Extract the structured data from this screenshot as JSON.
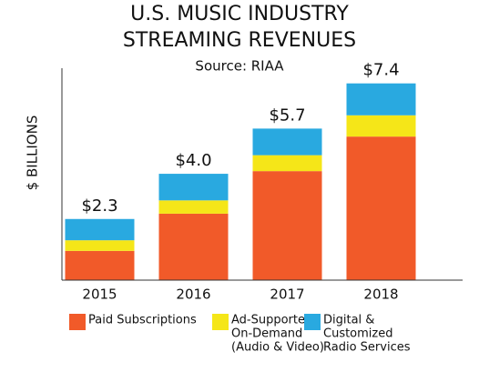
{
  "chart_data": {
    "type": "stacked-bar",
    "title": [
      "U.S. MUSIC INDUSTRY",
      "STREAMING REVENUES"
    ],
    "subtitle": "Source: RIAA",
    "y_label": "$ BILLIONS",
    "categories": [
      "2015",
      "2016",
      "2017",
      "2018"
    ],
    "series": [
      {
        "name": [
          "Paid Subscriptions"
        ],
        "color": "#f15a29",
        "values": [
          1.1,
          2.5,
          4.1,
          5.4
        ]
      },
      {
        "name": [
          "Ad-Supported",
          "On-Demand",
          "(Audio & Video)"
        ],
        "color": "#f5e618",
        "values": [
          0.4,
          0.5,
          0.6,
          0.8
        ]
      },
      {
        "name": [
          "Digital &",
          "Customized",
          "Radio Services"
        ],
        "color": "#29a9e0",
        "values": [
          0.8,
          1.0,
          1.0,
          1.2
        ]
      }
    ],
    "totals": [
      2.3,
      4.0,
      5.7,
      7.4
    ],
    "total_labels": [
      "$2.3",
      "$4.0",
      "$5.7",
      "$7.4"
    ],
    "ylim": [
      0,
      7.8
    ]
  }
}
